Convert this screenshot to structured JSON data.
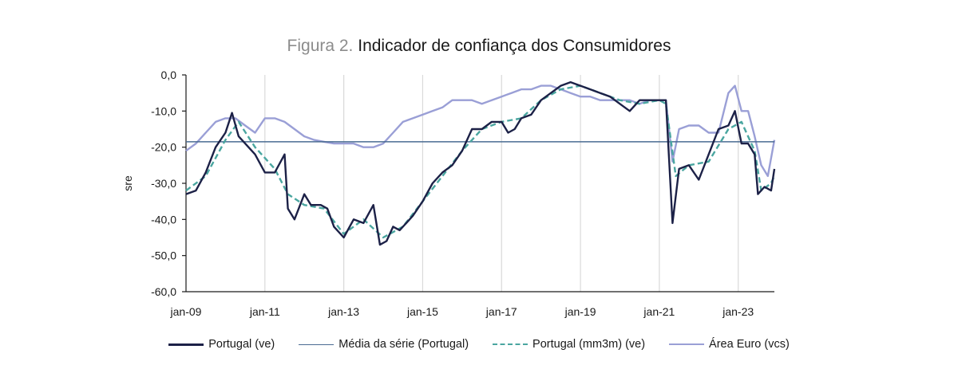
{
  "chart_data": {
    "type": "line",
    "title_prefix": "Figura 2.",
    "title": "Indicador de confiança dos Consumidores",
    "xlabel": "",
    "ylabel": "sre",
    "ylim": [
      -60,
      0
    ],
    "yticks": [
      "0,0",
      "-10,0",
      "-20,0",
      "-30,0",
      "-40,0",
      "-50,0",
      "-60,0"
    ],
    "yticks_values": [
      0,
      -10,
      -20,
      -30,
      -40,
      -50,
      -60
    ],
    "xtick_labels": [
      "jan-09",
      "jan-11",
      "jan-13",
      "jan-15",
      "jan-17",
      "jan-19",
      "jan-21",
      "jan-23"
    ],
    "x_start": "2009-01",
    "x_end": "2023-12",
    "grid": "vertical at january of odd years",
    "legend_placement": "bottom",
    "colors": {
      "portugal": "#1c2147",
      "media": "#4a6b92",
      "mm3m": "#4aa6a0",
      "euro": "#9a9fd6",
      "axis": "#1a1a1a",
      "grid": "#d9d9d9"
    },
    "series": [
      {
        "name": "Portugal (ve)",
        "style": "solid-dark",
        "points": [
          [
            "2009-01",
            -33
          ],
          [
            "2009-04",
            -32
          ],
          [
            "2009-07",
            -27
          ],
          [
            "2009-10",
            -20
          ],
          [
            "2010-01",
            -16
          ],
          [
            "2010-03",
            -10.5
          ],
          [
            "2010-05",
            -17
          ],
          [
            "2010-07",
            -19
          ],
          [
            "2010-10",
            -22
          ],
          [
            "2011-01",
            -27
          ],
          [
            "2011-04",
            -27
          ],
          [
            "2011-07",
            -22
          ],
          [
            "2011-08",
            -37
          ],
          [
            "2011-10",
            -40
          ],
          [
            "2012-01",
            -33
          ],
          [
            "2012-03",
            -36
          ],
          [
            "2012-06",
            -36
          ],
          [
            "2012-08",
            -37
          ],
          [
            "2012-10",
            -42
          ],
          [
            "2013-01",
            -45
          ],
          [
            "2013-04",
            -40
          ],
          [
            "2013-07",
            -41
          ],
          [
            "2013-10",
            -36
          ],
          [
            "2013-12",
            -47
          ],
          [
            "2014-02",
            -46
          ],
          [
            "2014-04",
            -42
          ],
          [
            "2014-06",
            -43
          ],
          [
            "2014-08",
            -41
          ],
          [
            "2014-10",
            -39
          ],
          [
            "2015-01",
            -35
          ],
          [
            "2015-04",
            -30
          ],
          [
            "2015-07",
            -27
          ],
          [
            "2015-10",
            -25
          ],
          [
            "2016-01",
            -21
          ],
          [
            "2016-04",
            -15
          ],
          [
            "2016-07",
            -15
          ],
          [
            "2016-10",
            -13
          ],
          [
            "2017-01",
            -13
          ],
          [
            "2017-03",
            -16
          ],
          [
            "2017-05",
            -15
          ],
          [
            "2017-07",
            -12
          ],
          [
            "2017-10",
            -11
          ],
          [
            "2018-01",
            -7
          ],
          [
            "2018-04",
            -5
          ],
          [
            "2018-07",
            -3
          ],
          [
            "2018-10",
            -2
          ],
          [
            "2019-01",
            -3
          ],
          [
            "2019-04",
            -4
          ],
          [
            "2019-07",
            -5
          ],
          [
            "2019-10",
            -6
          ],
          [
            "2020-01",
            -8
          ],
          [
            "2020-04",
            -10
          ],
          [
            "2020-07",
            -7
          ],
          [
            "2020-10",
            -7
          ],
          [
            "2021-01",
            -7
          ],
          [
            "2021-03",
            -7
          ],
          [
            "2021-05",
            -41
          ],
          [
            "2021-07",
            -26
          ],
          [
            "2021-10",
            -25
          ],
          [
            "2022-01",
            -29
          ],
          [
            "2022-04",
            -22
          ],
          [
            "2022-07",
            -15
          ],
          [
            "2022-10",
            -14
          ],
          [
            "2022-12",
            -10
          ],
          [
            "2023-02",
            -19
          ],
          [
            "2023-04",
            -19
          ],
          [
            "2023-06",
            -22
          ],
          [
            "2023-07",
            -33
          ],
          [
            "2023-09",
            -31
          ],
          [
            "2023-11",
            -32
          ],
          [
            "2023-12",
            -26
          ]
        ]
      },
      {
        "name": "Média da série (Portugal)",
        "style": "solid-thin",
        "constant": -18.5
      },
      {
        "name": "Portugal (mm3m) (ve)",
        "style": "dashed",
        "points": [
          [
            "2009-01",
            -32
          ],
          [
            "2009-07",
            -28
          ],
          [
            "2010-01",
            -18
          ],
          [
            "2010-05",
            -13
          ],
          [
            "2010-10",
            -20
          ],
          [
            "2011-04",
            -26
          ],
          [
            "2011-08",
            -33
          ],
          [
            "2012-01",
            -36
          ],
          [
            "2012-07",
            -37
          ],
          [
            "2013-01",
            -44
          ],
          [
            "2013-07",
            -40
          ],
          [
            "2014-01",
            -45
          ],
          [
            "2014-07",
            -42
          ],
          [
            "2015-01",
            -35
          ],
          [
            "2015-07",
            -28
          ],
          [
            "2016-01",
            -21
          ],
          [
            "2016-07",
            -15
          ],
          [
            "2017-01",
            -13
          ],
          [
            "2017-07",
            -12
          ],
          [
            "2018-01",
            -7
          ],
          [
            "2018-07",
            -4
          ],
          [
            "2019-01",
            -3
          ],
          [
            "2019-07",
            -5
          ],
          [
            "2020-01",
            -7
          ],
          [
            "2020-07",
            -8
          ],
          [
            "2021-01",
            -7
          ],
          [
            "2021-03",
            -8
          ],
          [
            "2021-06",
            -28
          ],
          [
            "2021-10",
            -25
          ],
          [
            "2022-04",
            -24
          ],
          [
            "2022-10",
            -15
          ],
          [
            "2023-02",
            -13
          ],
          [
            "2023-06",
            -21
          ],
          [
            "2023-08",
            -32
          ],
          [
            "2023-11",
            -30
          ],
          [
            "2023-12",
            -28
          ]
        ]
      },
      {
        "name": "Área Euro (vcs)",
        "style": "solid-light",
        "points": [
          [
            "2009-01",
            -21
          ],
          [
            "2009-04",
            -19
          ],
          [
            "2009-07",
            -16
          ],
          [
            "2009-10",
            -13
          ],
          [
            "2010-01",
            -12
          ],
          [
            "2010-04",
            -12
          ],
          [
            "2010-07",
            -14
          ],
          [
            "2010-10",
            -16
          ],
          [
            "2011-01",
            -12
          ],
          [
            "2011-04",
            -12
          ],
          [
            "2011-07",
            -13
          ],
          [
            "2011-10",
            -15
          ],
          [
            "2012-01",
            -17
          ],
          [
            "2012-04",
            -18
          ],
          [
            "2012-07",
            -18.5
          ],
          [
            "2012-10",
            -19
          ],
          [
            "2013-01",
            -19
          ],
          [
            "2013-04",
            -19
          ],
          [
            "2013-07",
            -20
          ],
          [
            "2013-10",
            -20
          ],
          [
            "2014-01",
            -19
          ],
          [
            "2014-04",
            -16
          ],
          [
            "2014-07",
            -13
          ],
          [
            "2014-10",
            -12
          ],
          [
            "2015-01",
            -11
          ],
          [
            "2015-04",
            -10
          ],
          [
            "2015-07",
            -9
          ],
          [
            "2015-10",
            -7
          ],
          [
            "2016-01",
            -7
          ],
          [
            "2016-04",
            -7
          ],
          [
            "2016-07",
            -8
          ],
          [
            "2016-10",
            -7
          ],
          [
            "2017-01",
            -6
          ],
          [
            "2017-04",
            -5
          ],
          [
            "2017-07",
            -4
          ],
          [
            "2017-10",
            -4
          ],
          [
            "2018-01",
            -3
          ],
          [
            "2018-04",
            -3
          ],
          [
            "2018-07",
            -4
          ],
          [
            "2018-10",
            -5
          ],
          [
            "2019-01",
            -6
          ],
          [
            "2019-04",
            -6
          ],
          [
            "2019-07",
            -7
          ],
          [
            "2019-10",
            -7
          ],
          [
            "2020-01",
            -7
          ],
          [
            "2020-04",
            -7
          ],
          [
            "2020-07",
            -8
          ],
          [
            "2020-10",
            -7
          ],
          [
            "2021-01",
            -7
          ],
          [
            "2021-03",
            -7
          ],
          [
            "2021-05",
            -24
          ],
          [
            "2021-07",
            -15
          ],
          [
            "2021-10",
            -14
          ],
          [
            "2022-01",
            -14
          ],
          [
            "2022-04",
            -16
          ],
          [
            "2022-07",
            -16
          ],
          [
            "2022-10",
            -5
          ],
          [
            "2022-12",
            -3
          ],
          [
            "2023-02",
            -10
          ],
          [
            "2023-04",
            -10
          ],
          [
            "2023-06",
            -17
          ],
          [
            "2023-08",
            -25
          ],
          [
            "2023-10",
            -28
          ],
          [
            "2023-11",
            -23
          ],
          [
            "2023-12",
            -18
          ]
        ]
      }
    ]
  }
}
